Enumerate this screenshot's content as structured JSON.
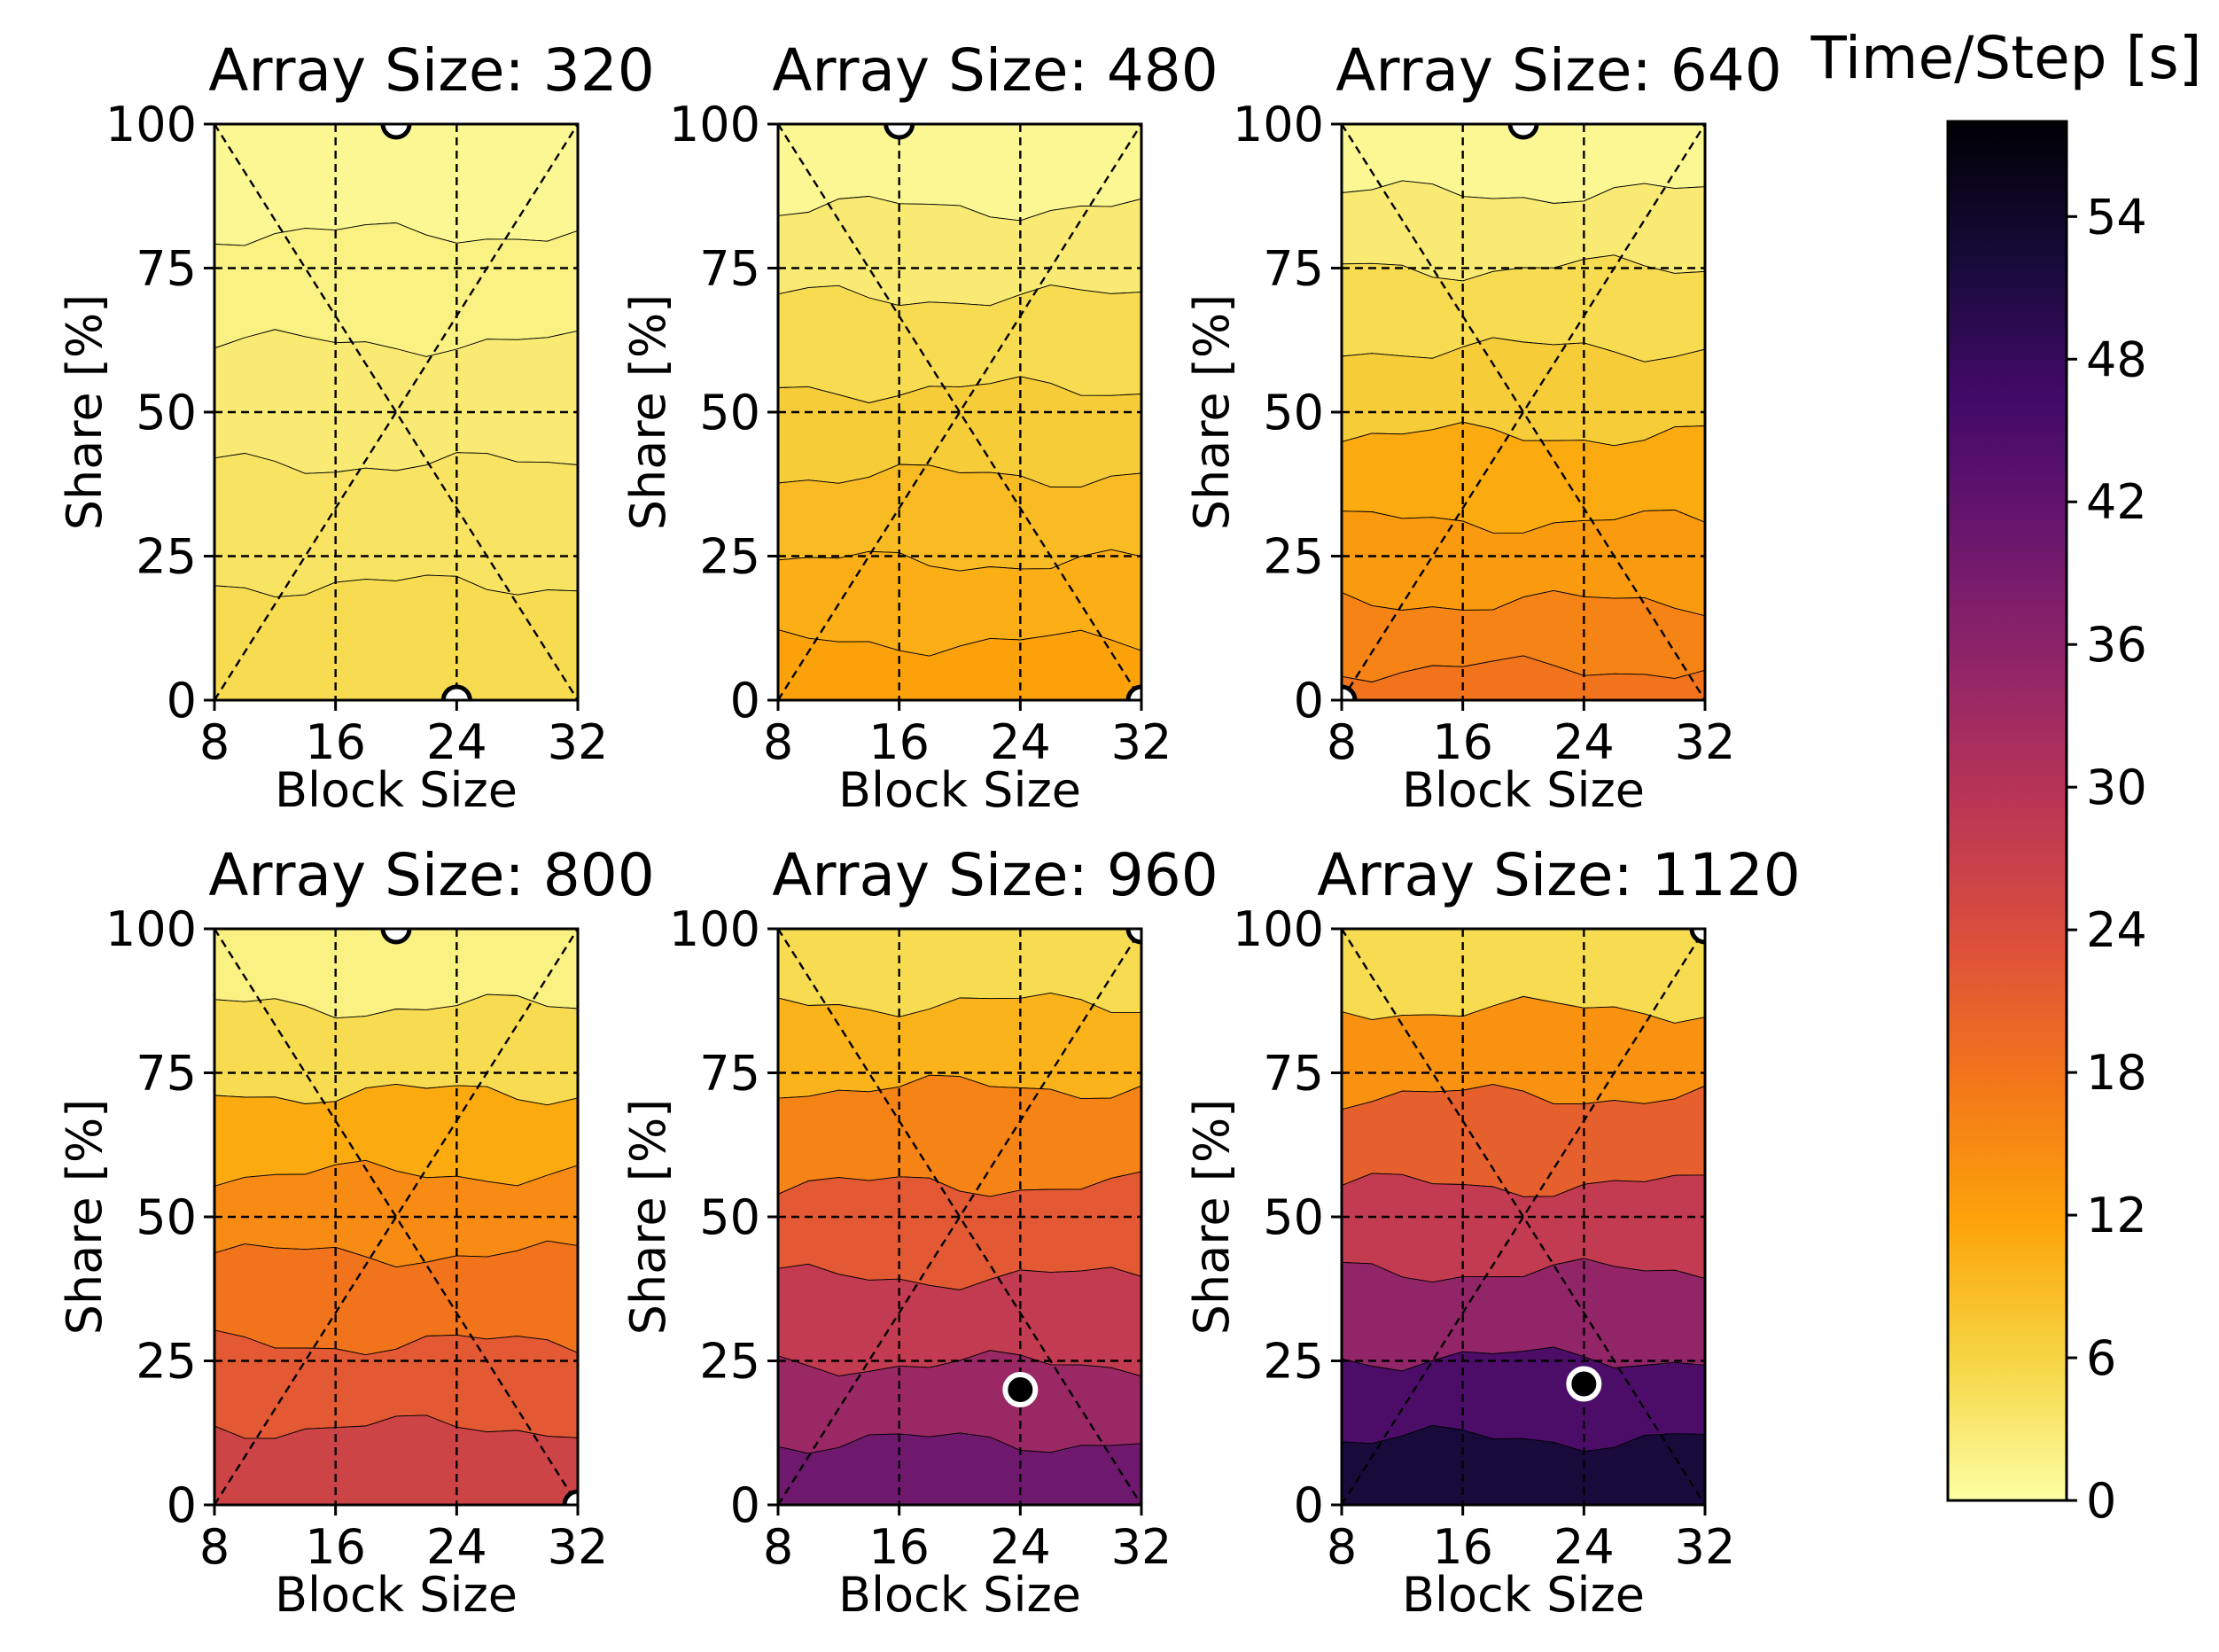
{
  "colorbar": {
    "title": "Time/Step [s]",
    "min": 0,
    "max": 58,
    "ticks": [
      "0",
      "6",
      "12",
      "18",
      "24",
      "30",
      "36",
      "42",
      "48",
      "54"
    ],
    "colormap": "inferno_r",
    "stops": [
      "#fcffa4",
      "#f6d645",
      "#fca50a",
      "#f37819",
      "#dd513a",
      "#bc3754",
      "#932667",
      "#6a176e",
      "#420a68",
      "#160b39",
      "#000004"
    ]
  },
  "chart_data": [
    {
      "type": "contour",
      "title": "Array Size: 320",
      "xlabel": "Block Size",
      "ylabel": "Share [%]",
      "xticks": [
        "8",
        "16",
        "24",
        "32"
      ],
      "yticks": [
        "0",
        "25",
        "50",
        "75",
        "100"
      ],
      "xlim": [
        8,
        32
      ],
      "ylim": [
        0,
        100
      ],
      "grid": "dashed at x=16,24 and y=25,50,75; diagonals corner-to-corner",
      "levels": [
        {
          "y": 90,
          "value": 1.0
        },
        {
          "y": 72,
          "value": 2.0
        },
        {
          "y": 52,
          "value": 3.0
        },
        {
          "y": 30,
          "value": 4.0
        },
        {
          "y": 10,
          "value": 5.0
        }
      ],
      "markers": [
        {
          "x": 20,
          "y": 100,
          "style": "open"
        },
        {
          "x": 24,
          "y": 0,
          "style": "open"
        }
      ]
    },
    {
      "type": "contour",
      "title": "Array Size: 480",
      "xlabel": "Block Size",
      "ylabel": "Share [%]",
      "xticks": [
        "8",
        "16",
        "24",
        "32"
      ],
      "yticks": [
        "0",
        "25",
        "50",
        "75",
        "100"
      ],
      "xlim": [
        8,
        32
      ],
      "ylim": [
        0,
        100
      ],
      "levels": [
        {
          "y": 93,
          "value": 1.0
        },
        {
          "y": 78,
          "value": 3.0
        },
        {
          "y": 62,
          "value": 5.0
        },
        {
          "y": 46,
          "value": 7.0
        },
        {
          "y": 32,
          "value": 9.0
        },
        {
          "y": 16,
          "value": 10.5
        },
        {
          "y": 4,
          "value": 12.0
        }
      ],
      "markers": [
        {
          "x": 16,
          "y": 100,
          "style": "open"
        },
        {
          "x": 32,
          "y": 0,
          "style": "open"
        }
      ]
    },
    {
      "type": "contour",
      "title": "Array Size: 640",
      "xlabel": "Block Size",
      "ylabel": "Share [%]",
      "xticks": [
        "8",
        "16",
        "24",
        "32"
      ],
      "yticks": [
        "0",
        "25",
        "50",
        "75",
        "100"
      ],
      "xlim": [
        8,
        32
      ],
      "ylim": [
        0,
        100
      ],
      "levels": [
        {
          "y": 94,
          "value": 1.0
        },
        {
          "y": 82,
          "value": 3.0
        },
        {
          "y": 68,
          "value": 5.0
        },
        {
          "y": 54,
          "value": 7.0
        },
        {
          "y": 38,
          "value": 11.0
        },
        {
          "y": 24,
          "value": 13.0
        },
        {
          "y": 10,
          "value": 16.0
        },
        {
          "y": 1,
          "value": 18.0
        }
      ],
      "markers": [
        {
          "x": 20,
          "y": 100,
          "style": "open"
        },
        {
          "x": 8,
          "y": 0,
          "style": "open"
        }
      ]
    },
    {
      "type": "contour",
      "title": "Array Size: 800",
      "xlabel": "Block Size",
      "ylabel": "Share [%]",
      "xticks": [
        "8",
        "16",
        "24",
        "32"
      ],
      "yticks": [
        "0",
        "25",
        "50",
        "75",
        "100"
      ],
      "xlim": [
        8,
        32
      ],
      "ylim": [
        0,
        100
      ],
      "levels": [
        {
          "y": 94,
          "value": 2.0
        },
        {
          "y": 79,
          "value": 5.0
        },
        {
          "y": 64,
          "value": 11.0
        },
        {
          "y": 51,
          "value": 15.0
        },
        {
          "y": 36,
          "value": 18.0
        },
        {
          "y": 20,
          "value": 22.0
        },
        {
          "y": 7,
          "value": 26.0
        }
      ],
      "markers": [
        {
          "x": 20,
          "y": 100,
          "style": "open"
        },
        {
          "x": 32,
          "y": 0,
          "style": "open"
        }
      ]
    },
    {
      "type": "contour",
      "title": "Array Size: 960",
      "xlabel": "Block Size",
      "ylabel": "Share [%]",
      "xticks": [
        "8",
        "16",
        "24",
        "32"
      ],
      "yticks": [
        "0",
        "25",
        "50",
        "75",
        "100"
      ],
      "xlim": [
        8,
        32
      ],
      "ylim": [
        0,
        100
      ],
      "levels": [
        {
          "y": 93,
          "value": 5.0
        },
        {
          "y": 81,
          "value": 10.0
        },
        {
          "y": 64,
          "value": 16.0
        },
        {
          "y": 47,
          "value": 22.0
        },
        {
          "y": 32,
          "value": 28.0
        },
        {
          "y": 17,
          "value": 34.0
        },
        {
          "y": 5,
          "value": 40.0
        }
      ],
      "markers": [
        {
          "x": 32,
          "y": 100,
          "style": "open"
        },
        {
          "x": 24,
          "y": 20,
          "style": "filled"
        }
      ]
    },
    {
      "type": "contour",
      "title": "Array Size: 1120",
      "xlabel": "Block Size",
      "ylabel": "Share [%]",
      "xticks": [
        "8",
        "16",
        "24",
        "32"
      ],
      "yticks": [
        "0",
        "25",
        "50",
        "75",
        "100"
      ],
      "xlim": [
        8,
        32
      ],
      "ylim": [
        0,
        100
      ],
      "levels": [
        {
          "y": 93,
          "value": 5.0
        },
        {
          "y": 79,
          "value": 14.0
        },
        {
          "y": 63,
          "value": 21.0
        },
        {
          "y": 48,
          "value": 28.0
        },
        {
          "y": 33,
          "value": 35.0
        },
        {
          "y": 18,
          "value": 45.0
        },
        {
          "y": 5,
          "value": 52.0
        }
      ],
      "markers": [
        {
          "x": 32,
          "y": 100,
          "style": "open"
        },
        {
          "x": 24,
          "y": 21,
          "style": "filled"
        }
      ]
    }
  ]
}
